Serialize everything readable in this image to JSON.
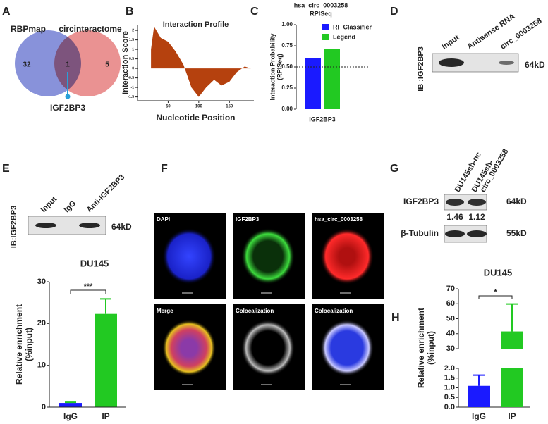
{
  "panel_letters": [
    "A",
    "B",
    "C",
    "D",
    "E",
    "F",
    "G",
    "H"
  ],
  "venn": {
    "sets": [
      "RBPmap",
      "circinteractome"
    ],
    "counts": [
      32,
      1,
      5
    ],
    "intersection_label": "IGF2BP3",
    "colors": [
      "#7b86d6",
      "#e36d6d"
    ]
  },
  "chart_data": [
    {
      "type": "area",
      "title": "Interaction Profile",
      "x_label": "Nucleotide Position",
      "y_label": "Interaction Score",
      "x": [
        22,
        27,
        38,
        50,
        62,
        75,
        88,
        100,
        112,
        125,
        137,
        150,
        162,
        175,
        185
      ],
      "values": [
        1.0,
        2.2,
        1.6,
        1.4,
        0.9,
        0.2,
        -1.0,
        -1.5,
        -1.0,
        -0.6,
        -0.9,
        -0.7,
        -0.2,
        0.1,
        0
      ],
      "color": "#b5410e",
      "xlim": [
        0,
        190
      ],
      "ylim": [
        -1.7,
        2.3
      ],
      "xticks": [
        50,
        100,
        150
      ],
      "yticks": [
        2,
        1.5,
        1,
        0.5,
        0,
        -0.5,
        -1,
        -1.5
      ]
    },
    {
      "type": "bar",
      "title": "hsa_circ_0003258",
      "subtitle": "RPISeq",
      "y_label": [
        "Interaction Probability",
        "(RPISeq)"
      ],
      "categories": [
        "IGF2BP3"
      ],
      "series": [
        {
          "name": "RF Classifier",
          "color": "#1a1aff",
          "values": [
            0.6
          ]
        },
        {
          "name": "Legend",
          "color": "#22c922",
          "values": [
            0.71
          ]
        }
      ],
      "ylim": [
        0,
        1
      ],
      "yticks": [
        {
          "value": 0,
          "label": "0.00"
        },
        {
          "value": 0.25,
          "label": "0.25"
        },
        {
          "value": 0.5,
          "label": "0.50"
        },
        {
          "value": 0.75,
          "label": "0.75"
        },
        {
          "value": 1,
          "label": "1.00"
        }
      ],
      "reference_line": 0.5
    },
    {
      "type": "bar",
      "title": "DU145",
      "y_label": [
        "Relative enrichment",
        "(%input)"
      ],
      "categories": [
        "IgG",
        "IP"
      ],
      "values": [
        1,
        22.3
      ],
      "errors": [
        0.15,
        3.6
      ],
      "colors": [
        "#1a1aff",
        "#22c922"
      ],
      "ylim": [
        0,
        30
      ],
      "yticks": [
        0,
        10,
        20,
        30
      ],
      "significance": "***"
    },
    {
      "type": "broken_bar",
      "title": "DU145",
      "y_label": [
        "Relative enrichment",
        "(%input)"
      ],
      "categories": [
        "IgG",
        "IP"
      ],
      "values": [
        1.1,
        41.5
      ],
      "errors": [
        0.55,
        18.3
      ],
      "colors": [
        "#1a1aff",
        "#22c922"
      ],
      "segments": [
        {
          "ylim": [
            0,
            2
          ],
          "yticks": [
            {
              "value": 0,
              "label": "0.0"
            },
            0.5,
            {
              "value": 1,
              "label": "1.0"
            },
            1.5,
            {
              "value": 2,
              "label": "2.0"
            }
          ]
        },
        {
          "ylim": [
            30,
            70
          ],
          "yticks": [
            30,
            40,
            50,
            60,
            70
          ]
        }
      ],
      "significance": "*"
    }
  ],
  "blots": [
    {
      "probe": "IB :IGF2BP3",
      "lanes": [
        "Input",
        "Antisense RNA",
        "circ_0003258"
      ],
      "size": "64kD"
    },
    {
      "probe": "IB:IGF2BP3",
      "lanes": [
        "Input",
        "IgG",
        "Anti-IGF2BP3"
      ],
      "size": "64kD"
    },
    {
      "lanes": [
        [
          "DU145sh-nc"
        ],
        [
          "DU145sh-",
          "circ_0003258"
        ]
      ],
      "rows": [
        {
          "protein": "IGF2BP3",
          "size": "64kD",
          "quantification": [
            1.46,
            1.12
          ]
        },
        {
          "protein": "β-Tubulin",
          "size": "55kD"
        }
      ]
    }
  ],
  "microscopy": {
    "panels": [
      "DAPI",
      "IGF2BP3",
      "hsa_circ_0003258",
      "Merge",
      "Colocalization",
      "Colocalization"
    ]
  }
}
